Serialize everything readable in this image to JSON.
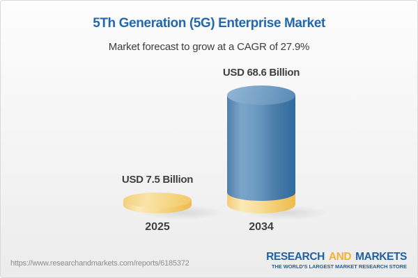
{
  "header": {
    "title": "5Th Generation (5G) Enterprise Market",
    "subtitle": "Market forecast to grow at a CAGR of 27.9%"
  },
  "chart_data": {
    "type": "bar",
    "categories": [
      "2025",
      "2034"
    ],
    "values": [
      7.5,
      68.6
    ],
    "value_labels": [
      "USD 7.5 Billion",
      "USD 68.6 Billion"
    ],
    "unit": "USD Billion",
    "cagr_pct": 27.9,
    "title": "5Th Generation (5G) Enterprise Market",
    "subtitle": "Market forecast to grow at a CAGR of 27.9%",
    "bar_colors": [
      "#f5cf7a",
      "#5d8cb8"
    ],
    "base_band": [
      false,
      true
    ],
    "legend": "none",
    "grid": false
  },
  "footer": {
    "url": "https://www.researchandmarkets.com/reports/6185372",
    "logo": {
      "word1": "RESEARCH",
      "word2": "AND",
      "word3": "MARKETS",
      "tagline": "THE WORLD'S LARGEST MARKET RESEARCH STORE",
      "blue": "#23609e",
      "gold": "#f0b231"
    }
  },
  "colors": {
    "title_blue": "#2368ac",
    "text_dark": "#3f3f3f",
    "url_gray": "#8c8c8c"
  }
}
